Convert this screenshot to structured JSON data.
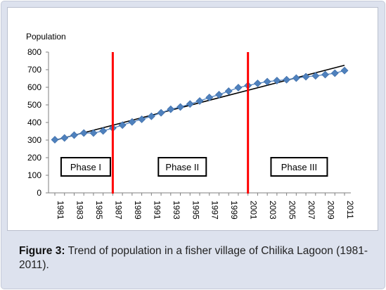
{
  "caption": {
    "label": "Figure 3:",
    "text": "Trend of population in a fisher village of Chilika Lagoon (1981-2011)."
  },
  "chart_data": {
    "type": "line",
    "ylabel": "Population",
    "xlabel": "",
    "title": "",
    "ylim": [
      0,
      800
    ],
    "yticks": [
      0,
      100,
      200,
      300,
      400,
      500,
      600,
      700,
      800
    ],
    "xticks": [
      1981,
      1983,
      1985,
      1987,
      1989,
      1991,
      1993,
      1995,
      1997,
      1999,
      2001,
      2003,
      2005,
      2007,
      2009,
      2011
    ],
    "x": [
      1981,
      1982,
      1983,
      1984,
      1985,
      1986,
      1987,
      1988,
      1989,
      1990,
      1991,
      1992,
      1993,
      1994,
      1995,
      1996,
      1997,
      1998,
      1999,
      2000,
      2001,
      2002,
      2003,
      2004,
      2005,
      2006,
      2007,
      2008,
      2009,
      2010,
      2011
    ],
    "series": [
      {
        "values": [
          302,
          312,
          328,
          340,
          340,
          352,
          368,
          385,
          403,
          418,
          435,
          455,
          475,
          488,
          505,
          522,
          542,
          558,
          578,
          598,
          610,
          622,
          632,
          638,
          643,
          652,
          660,
          665,
          672,
          680,
          695
        ],
        "color": "#4f81bd"
      }
    ],
    "trend_line_color": "#000000",
    "phase_dividers": [
      1987,
      2001
    ],
    "phase_divider_color": "#ff0000",
    "phases": [
      {
        "label": "Phase I",
        "center_year": 1984.2
      },
      {
        "label": "Phase II",
        "center_year": 1994.2
      },
      {
        "label": "Phase III",
        "center_year": 2006.3
      }
    ],
    "grid": false,
    "legend": "none"
  }
}
